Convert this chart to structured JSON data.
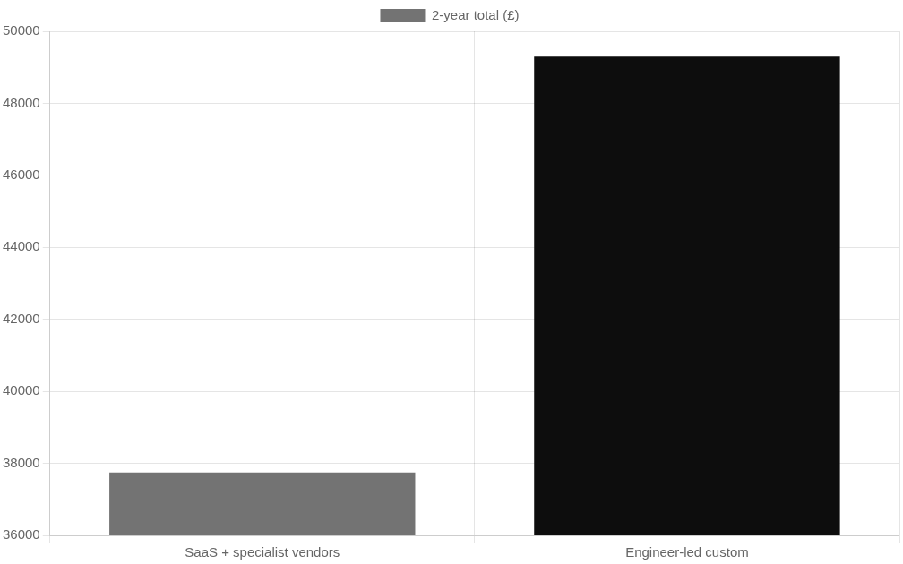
{
  "chart_data": {
    "type": "bar",
    "categories": [
      "SaaS + specialist vendors",
      "Engineer-led custom"
    ],
    "series": [
      {
        "name": "2-year total (£)",
        "colors": [
          "#737373",
          "#0d0d0d"
        ],
        "values": [
          37750,
          49300
        ]
      }
    ],
    "ylim": [
      36000,
      50000
    ],
    "yticks": [
      36000,
      38000,
      40000,
      42000,
      44000,
      46000,
      48000,
      50000
    ],
    "grid": true,
    "legend": "top"
  }
}
